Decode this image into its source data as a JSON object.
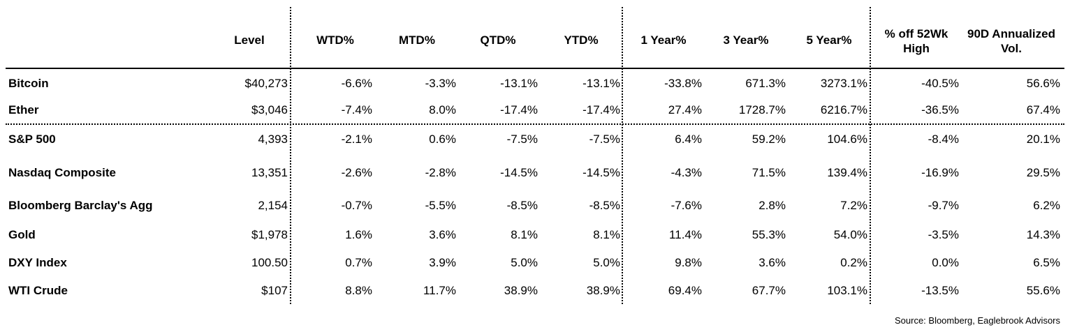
{
  "table": {
    "header": [
      "Level",
      "WTD%",
      "MTD%",
      "QTD%",
      "YTD%",
      "1 Year%",
      "3 Year%",
      "5 Year%",
      "% off 52Wk High",
      "90D Annualized Vol."
    ],
    "rows": [
      [
        "Bitcoin",
        "$40,273",
        "-6.6%",
        "-3.3%",
        "-13.1%",
        "-13.1%",
        "-33.8%",
        "671.3%",
        "3273.1%",
        "-40.5%",
        "56.6%"
      ],
      [
        "Ether",
        "$3,046",
        "-7.4%",
        "8.0%",
        "-17.4%",
        "-17.4%",
        "27.4%",
        "1728.7%",
        "6216.7%",
        "-36.5%",
        "67.4%"
      ],
      [
        "S&P 500",
        "4,393",
        "-2.1%",
        "0.6%",
        "-7.5%",
        "-7.5%",
        "6.4%",
        "59.2%",
        "104.6%",
        "-8.4%",
        "20.1%"
      ],
      [
        "Nasdaq Composite",
        "13,351",
        "-2.6%",
        "-2.8%",
        "-14.5%",
        "-14.5%",
        "-4.3%",
        "71.5%",
        "139.4%",
        "-16.9%",
        "29.5%"
      ],
      [
        "Bloomberg Barclay's Agg",
        "2,154",
        "-0.7%",
        "-5.5%",
        "-8.5%",
        "-8.5%",
        "-7.6%",
        "2.8%",
        "7.2%",
        "-9.7%",
        "6.2%"
      ],
      [
        "Gold",
        "$1,978",
        "1.6%",
        "3.6%",
        "8.1%",
        "8.1%",
        "11.4%",
        "55.3%",
        "54.0%",
        "-3.5%",
        "14.3%"
      ],
      [
        "DXY Index",
        "100.50",
        "0.7%",
        "3.9%",
        "5.0%",
        "5.0%",
        "9.8%",
        "3.6%",
        "0.2%",
        "0.0%",
        "6.5%"
      ],
      [
        "WTI Crude",
        "$107",
        "8.8%",
        "11.7%",
        "38.9%",
        "38.9%",
        "69.4%",
        "67.7%",
        "103.1%",
        "-13.5%",
        "55.6%"
      ]
    ]
  },
  "source": "Source: Bloomberg, Eaglebrook Advisors"
}
